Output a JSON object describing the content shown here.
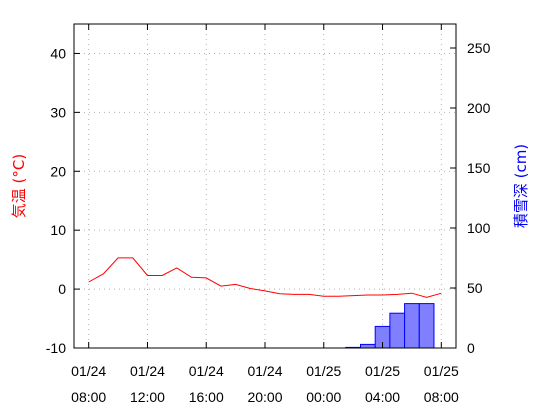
{
  "chart_data": {
    "type": "bar+line",
    "x_ticks": [
      {
        "date": "01/24",
        "time": "08:00"
      },
      {
        "date": "01/24",
        "time": "12:00"
      },
      {
        "date": "01/24",
        "time": "16:00"
      },
      {
        "date": "01/24",
        "time": "20:00"
      },
      {
        "date": "01/25",
        "time": "00:00"
      },
      {
        "date": "01/25",
        "time": "04:00"
      },
      {
        "date": "01/25",
        "time": "08:00"
      }
    ],
    "xlim": [
      "01/24 07:00",
      "01/25 09:00"
    ],
    "y_left": {
      "label": "気温 (°C)",
      "ylim": [
        -10,
        45
      ],
      "ticks": [
        -10,
        0,
        10,
        20,
        30,
        40
      ],
      "color": "#ff0000"
    },
    "y_right": {
      "label": "積雪深 (cm)",
      "ylim": [
        0,
        270
      ],
      "ticks": [
        0,
        50,
        100,
        150,
        200,
        250
      ],
      "color": "#0000ff"
    },
    "grid": true,
    "series": [
      {
        "kind": "line",
        "axis": "left",
        "color": "#ff0000",
        "x": [
          "01/24 08:00",
          "01/24 09:00",
          "01/24 10:00",
          "01/24 11:00",
          "01/24 12:00",
          "01/24 13:00",
          "01/24 14:00",
          "01/24 15:00",
          "01/24 16:00",
          "01/24 17:00",
          "01/24 18:00",
          "01/24 19:00",
          "01/24 20:00",
          "01/24 21:00",
          "01/24 22:00",
          "01/24 23:00",
          "01/25 00:00",
          "01/25 01:00",
          "01/25 02:00",
          "01/25 03:00",
          "01/25 04:00",
          "01/25 05:00",
          "01/25 06:00",
          "01/25 07:00",
          "01/25 08:00"
        ],
        "values": [
          1.2,
          2.6,
          5.3,
          5.3,
          2.3,
          2.3,
          3.6,
          2.0,
          1.9,
          0.5,
          0.8,
          0.1,
          -0.3,
          -0.8,
          -0.9,
          -0.9,
          -1.2,
          -1.2,
          -1.1,
          -1.0,
          -1.0,
          -0.9,
          -0.7,
          -1.4,
          -0.7
        ]
      },
      {
        "kind": "bar",
        "axis": "right",
        "color": "#8080ff",
        "edge_color": "#0000ff",
        "x": [
          "01/25 02:00",
          "01/25 03:00",
          "01/25 04:00",
          "01/25 05:00",
          "01/25 06:00",
          "01/25 07:00",
          "01/25 08:00"
        ],
        "values": [
          0.5,
          3,
          18,
          29,
          37,
          37,
          0
        ]
      }
    ]
  }
}
